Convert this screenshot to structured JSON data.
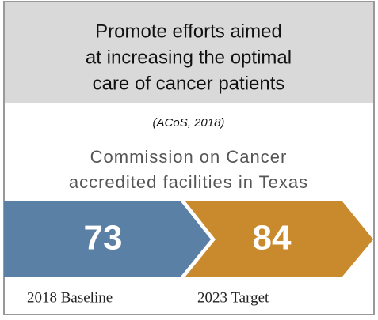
{
  "header": {
    "title_lines": [
      "Promote efforts aimed",
      "at increasing the optimal",
      "care of cancer patients"
    ]
  },
  "source": "(ACoS, 2018)",
  "metric_lines": [
    "Commission on Cancer",
    "accredited facilities in Texas"
  ],
  "stages": [
    {
      "value": 73,
      "label": "2018 Baseline",
      "color": "#5b80a5"
    },
    {
      "value": 84,
      "label": "2023 Target",
      "color": "#c98a2e"
    }
  ]
}
